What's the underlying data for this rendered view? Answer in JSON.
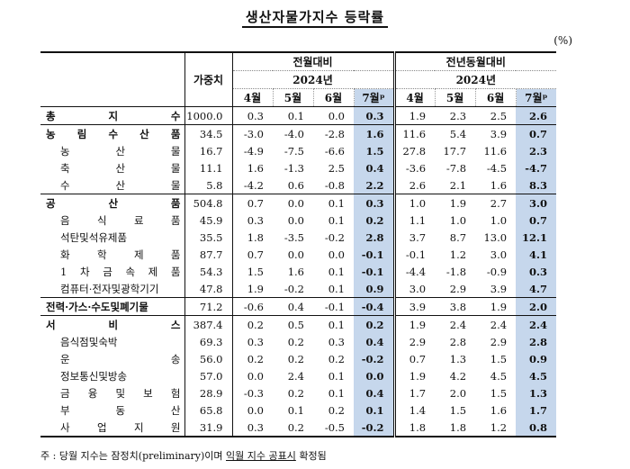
{
  "title": "생산자물가지수 등락률",
  "unit": "(%)",
  "headers": {
    "weight": "가중치",
    "mom": "전월대비",
    "yoy": "전년동월대비",
    "year": "2024년",
    "months": [
      "4월",
      "5월",
      "6월",
      "7월ᵖ"
    ]
  },
  "rows": [
    {
      "label": "총 지 수",
      "level": 0,
      "weight": "1000.0",
      "mom": [
        "0.3",
        "0.1",
        "0.0",
        "0.3"
      ],
      "yoy": [
        "1.9",
        "2.3",
        "2.5",
        "2.6"
      ]
    },
    {
      "label": "농 림 수 산 품",
      "level": 0,
      "weight": "34.5",
      "mom": [
        "-3.0",
        "-4.0",
        "-2.8",
        "1.6"
      ],
      "yoy": [
        "11.6",
        "5.4",
        "3.9",
        "0.7"
      ]
    },
    {
      "label": "농 산 물",
      "level": 1,
      "weight": "16.7",
      "mom": [
        "-4.9",
        "-7.5",
        "-6.6",
        "1.5"
      ],
      "yoy": [
        "27.8",
        "17.7",
        "11.6",
        "2.3"
      ]
    },
    {
      "label": "축 산 물",
      "level": 1,
      "weight": "11.1",
      "mom": [
        "1.6",
        "-1.3",
        "2.5",
        "0.4"
      ],
      "yoy": [
        "-3.6",
        "-7.8",
        "-4.5",
        "-4.7"
      ]
    },
    {
      "label": "수 산 물",
      "level": 1,
      "weight": "5.8",
      "mom": [
        "-4.2",
        "0.6",
        "-0.8",
        "2.2"
      ],
      "yoy": [
        "2.6",
        "2.1",
        "1.6",
        "8.3"
      ]
    },
    {
      "label": "공 산 품",
      "level": 0,
      "weight": "504.8",
      "mom": [
        "0.7",
        "0.0",
        "0.1",
        "0.3"
      ],
      "yoy": [
        "1.0",
        "1.9",
        "2.7",
        "3.0"
      ]
    },
    {
      "label": "음 식 료 품",
      "level": 1,
      "weight": "45.9",
      "mom": [
        "0.3",
        "0.0",
        "0.1",
        "0.2"
      ],
      "yoy": [
        "1.1",
        "1.0",
        "1.0",
        "0.7"
      ]
    },
    {
      "label": "석탄및석유제품",
      "level": 1,
      "weight": "35.5",
      "mom": [
        "1.8",
        "-3.5",
        "-0.2",
        "2.8"
      ],
      "yoy": [
        "3.7",
        "8.7",
        "13.0",
        "12.1"
      ]
    },
    {
      "label": "화 학 제 품",
      "level": 1,
      "weight": "87.7",
      "mom": [
        "0.7",
        "0.0",
        "0.0",
        "-0.1"
      ],
      "yoy": [
        "-0.1",
        "1.2",
        "3.0",
        "4.1"
      ]
    },
    {
      "label": "1 차 금 속 제 품",
      "level": 1,
      "weight": "54.3",
      "mom": [
        "1.5",
        "1.6",
        "0.1",
        "-0.1"
      ],
      "yoy": [
        "-4.4",
        "-1.8",
        "-0.9",
        "0.3"
      ]
    },
    {
      "label": "컴퓨터·전자및광학기기",
      "level": 1,
      "weight": "47.8",
      "mom": [
        "1.9",
        "-0.2",
        "0.1",
        "0.9"
      ],
      "yoy": [
        "3.0",
        "2.9",
        "3.9",
        "4.7"
      ]
    },
    {
      "label": "전력·가스·수도및폐기물",
      "level": 0,
      "weight": "71.2",
      "mom": [
        "-0.6",
        "0.4",
        "-0.1",
        "-0.4"
      ],
      "yoy": [
        "3.9",
        "3.8",
        "1.9",
        "2.0"
      ]
    },
    {
      "label": "서 비 스",
      "level": 0,
      "weight": "387.4",
      "mom": [
        "0.2",
        "0.5",
        "0.1",
        "0.2"
      ],
      "yoy": [
        "1.9",
        "2.4",
        "2.4",
        "2.4"
      ]
    },
    {
      "label": "음식점및숙박",
      "level": 1,
      "weight": "69.3",
      "mom": [
        "0.3",
        "0.2",
        "0.3",
        "0.4"
      ],
      "yoy": [
        "2.9",
        "2.8",
        "2.9",
        "2.8"
      ]
    },
    {
      "label": "운 송",
      "level": 1,
      "weight": "56.0",
      "mom": [
        "0.2",
        "0.2",
        "0.2",
        "-0.2"
      ],
      "yoy": [
        "0.7",
        "1.3",
        "1.5",
        "0.9"
      ]
    },
    {
      "label": "정보통신및방송",
      "level": 1,
      "weight": "57.0",
      "mom": [
        "0.0",
        "2.4",
        "0.1",
        "0.0"
      ],
      "yoy": [
        "1.9",
        "4.2",
        "4.5",
        "4.5"
      ]
    },
    {
      "label": "금 융 및 보 험",
      "level": 1,
      "weight": "28.9",
      "mom": [
        "-0.3",
        "0.2",
        "0.1",
        "0.4"
      ],
      "yoy": [
        "1.7",
        "2.0",
        "1.5",
        "1.3"
      ]
    },
    {
      "label": "부 동 산",
      "level": 1,
      "weight": "65.8",
      "mom": [
        "0.0",
        "0.1",
        "0.2",
        "0.1"
      ],
      "yoy": [
        "1.4",
        "1.5",
        "1.6",
        "1.7"
      ]
    },
    {
      "label": "사 업 지 원",
      "level": 1,
      "weight": "31.9",
      "mom": [
        "0.3",
        "0.2",
        "-0.5",
        "-0.2"
      ],
      "yoy": [
        "1.8",
        "1.8",
        "1.2",
        "0.8"
      ]
    }
  ],
  "footnote": {
    "prefix": "주 : 당월 지수는 잠정치(preliminary)이며 ",
    "underlined": "익월 지수 공표시",
    "suffix": " 확정됨"
  }
}
